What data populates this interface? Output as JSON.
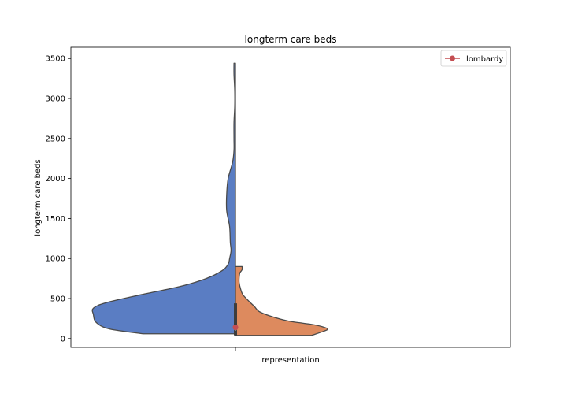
{
  "chart_data": {
    "type": "violin",
    "title": "longterm care beds",
    "xlabel": "",
    "ylabel": "longterm care beds",
    "categories": [
      "representation"
    ],
    "ylim": [
      -110,
      3640
    ],
    "yticks": [
      0,
      500,
      1000,
      1500,
      2000,
      2500,
      3000,
      3500
    ],
    "split": true,
    "grid": false,
    "legend": {
      "position": "top-right",
      "entries": [
        "lombardy"
      ]
    },
    "series": [
      {
        "side": "left",
        "color": "#5a7dc3",
        "range": [
          60,
          3440
        ],
        "density": [
          [
            60,
            0.63
          ],
          [
            120,
            0.86
          ],
          [
            200,
            0.95
          ],
          [
            300,
            0.97
          ],
          [
            380,
            0.97
          ],
          [
            450,
            0.88
          ],
          [
            550,
            0.64
          ],
          [
            650,
            0.38
          ],
          [
            750,
            0.2
          ],
          [
            850,
            0.09
          ],
          [
            930,
            0.05
          ],
          [
            1000,
            0.04
          ],
          [
            1100,
            0.03
          ],
          [
            1200,
            0.035
          ],
          [
            1400,
            0.04
          ],
          [
            1600,
            0.06
          ],
          [
            1800,
            0.06
          ],
          [
            2000,
            0.05
          ],
          [
            2200,
            0.02
          ],
          [
            2350,
            0.01
          ],
          [
            2500,
            0.01
          ],
          [
            2700,
            0.01
          ],
          [
            2900,
            0.005
          ],
          [
            3100,
            0.005
          ],
          [
            3300,
            0.01
          ],
          [
            3440,
            0.01
          ]
        ]
      },
      {
        "side": "right",
        "color": "#dd8a5e",
        "range": [
          40,
          900
        ],
        "density": [
          [
            40,
            0.52
          ],
          [
            90,
            0.6
          ],
          [
            120,
            0.63
          ],
          [
            150,
            0.59
          ],
          [
            180,
            0.51
          ],
          [
            220,
            0.36
          ],
          [
            280,
            0.24
          ],
          [
            340,
            0.16
          ],
          [
            400,
            0.13
          ],
          [
            470,
            0.09
          ],
          [
            550,
            0.05
          ],
          [
            620,
            0.035
          ],
          [
            700,
            0.025
          ],
          [
            760,
            0.025
          ],
          [
            820,
            0.03
          ],
          [
            860,
            0.045
          ],
          [
            900,
            0.045
          ]
        ]
      }
    ],
    "inner_box": {
      "q1": 40,
      "q3": 440,
      "median": 120
    },
    "highlight": {
      "label": "lombardy",
      "value": 140,
      "color": "#c44e52"
    }
  }
}
